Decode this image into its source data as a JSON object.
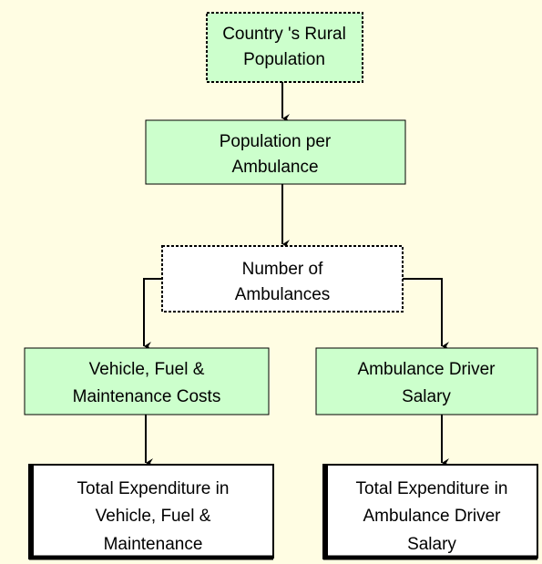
{
  "nodes": [
    {
      "lines": [
        "Country 's Rural",
        "Population"
      ]
    },
    {
      "lines": [
        "Population per",
        "Ambulance"
      ]
    },
    {
      "lines": [
        "Number of",
        "Ambulances"
      ]
    },
    {
      "lines": [
        "Vehicle, Fuel &",
        "Maintenance Costs"
      ]
    },
    {
      "lines": [
        "Ambulance Driver",
        "Salary"
      ]
    },
    {
      "lines": [
        "Total Expenditure in",
        "Vehicle, Fuel &",
        "Maintenance"
      ]
    },
    {
      "lines": [
        "Total Expenditure in",
        "Ambulance Driver",
        "Salary"
      ]
    }
  ]
}
